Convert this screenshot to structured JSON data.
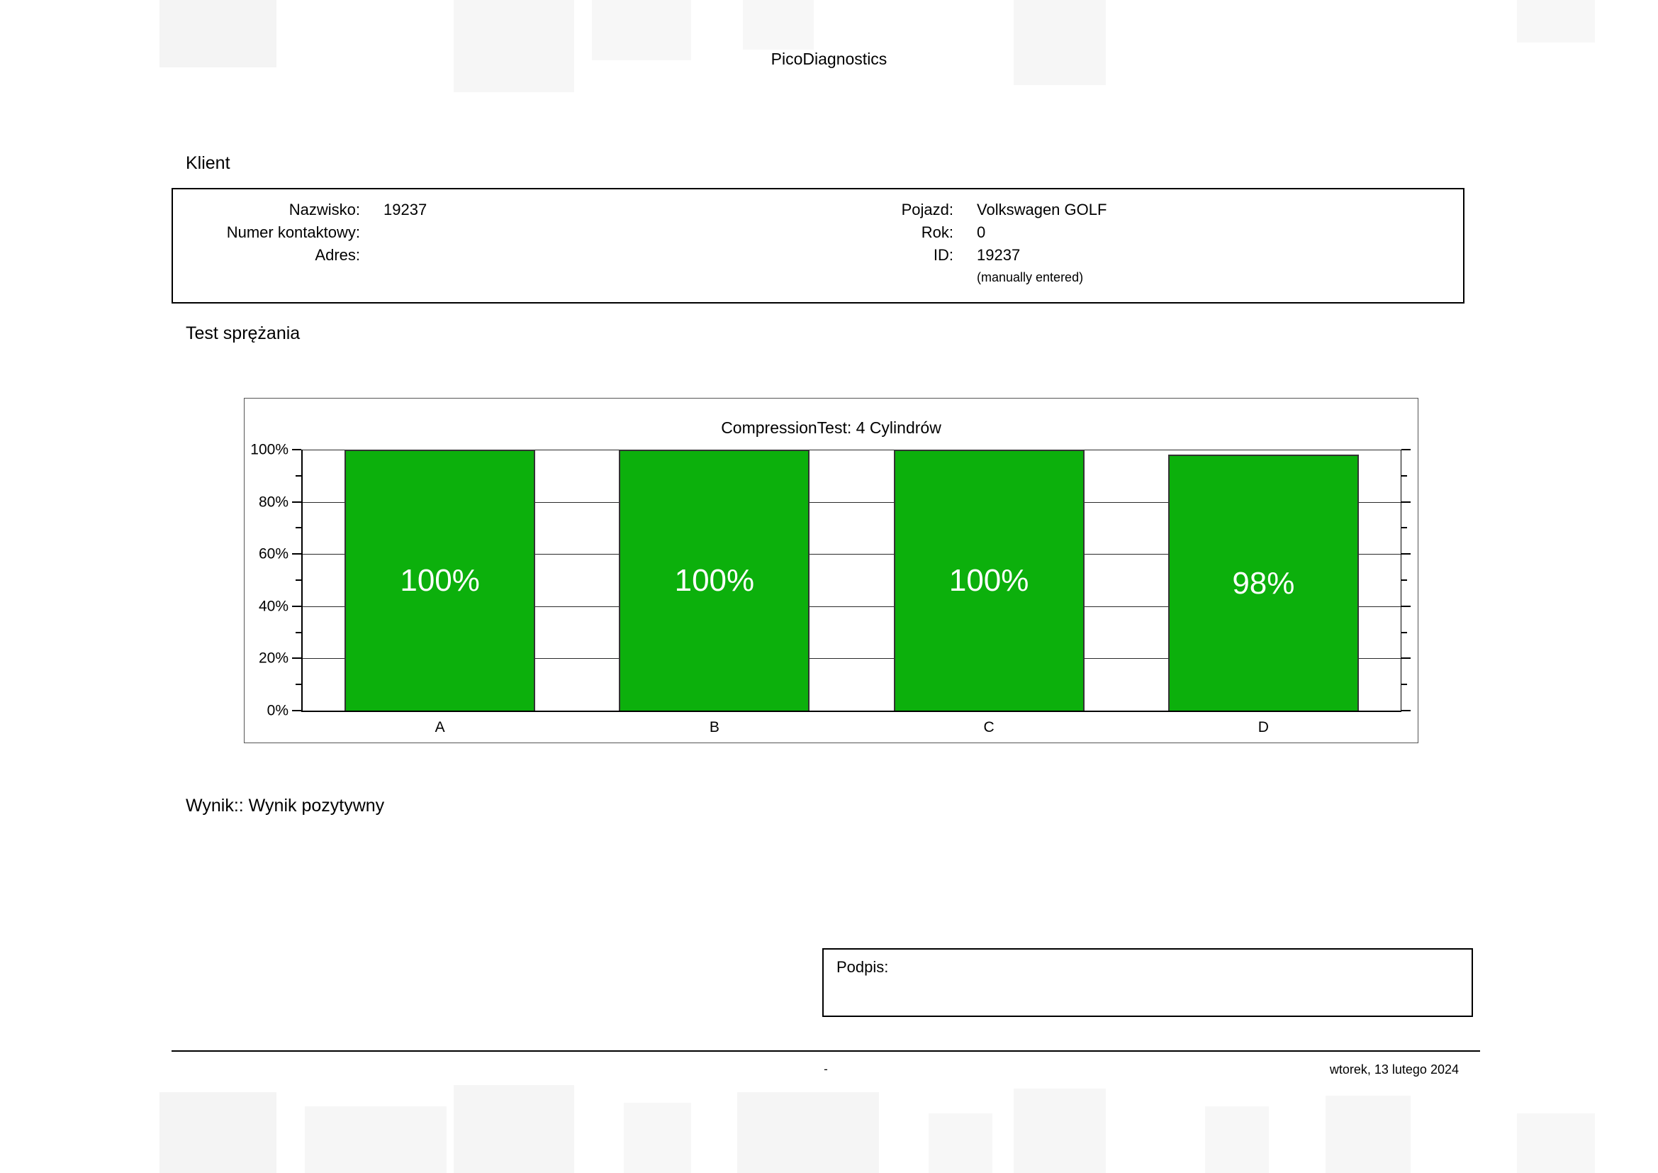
{
  "page": {
    "app_title": "PicoDiagnostics"
  },
  "client": {
    "section_title": "Klient",
    "left_fields": [
      {
        "label": "Nazwisko:",
        "value": "19237"
      },
      {
        "label": "Numer kontaktowy:",
        "value": ""
      },
      {
        "label": "Adres:",
        "value": ""
      }
    ],
    "right_fields": [
      {
        "label": "Pojazd:",
        "value": "Volkswagen GOLF"
      },
      {
        "label": "Rok:",
        "value": "0"
      },
      {
        "label": "ID:",
        "value": "19237"
      }
    ],
    "id_note": "(manually entered)"
  },
  "compression": {
    "section_title": "Test sprężania"
  },
  "chart_data": {
    "type": "bar",
    "title": "CompressionTest: 4 Cylindrów",
    "categories": [
      "A",
      "B",
      "C",
      "D"
    ],
    "values": [
      100,
      100,
      100,
      98
    ],
    "value_labels": [
      "100%",
      "100%",
      "100%",
      "98%"
    ],
    "yticks": [
      0,
      20,
      40,
      60,
      80,
      100
    ],
    "ytick_labels": [
      "0%",
      "20%",
      "40%",
      "60%",
      "80%",
      "100%"
    ],
    "ylim": [
      0,
      100
    ],
    "grid": true,
    "legend": false,
    "bar_color": "#0cb00c",
    "bar_label_color": "#ffffff"
  },
  "result": {
    "label": "Wynik:: Wynik pozytywny"
  },
  "signature": {
    "label": "Podpis:"
  },
  "footer": {
    "center_text": "-",
    "date": "wtorek, 13 lutego 2024"
  }
}
